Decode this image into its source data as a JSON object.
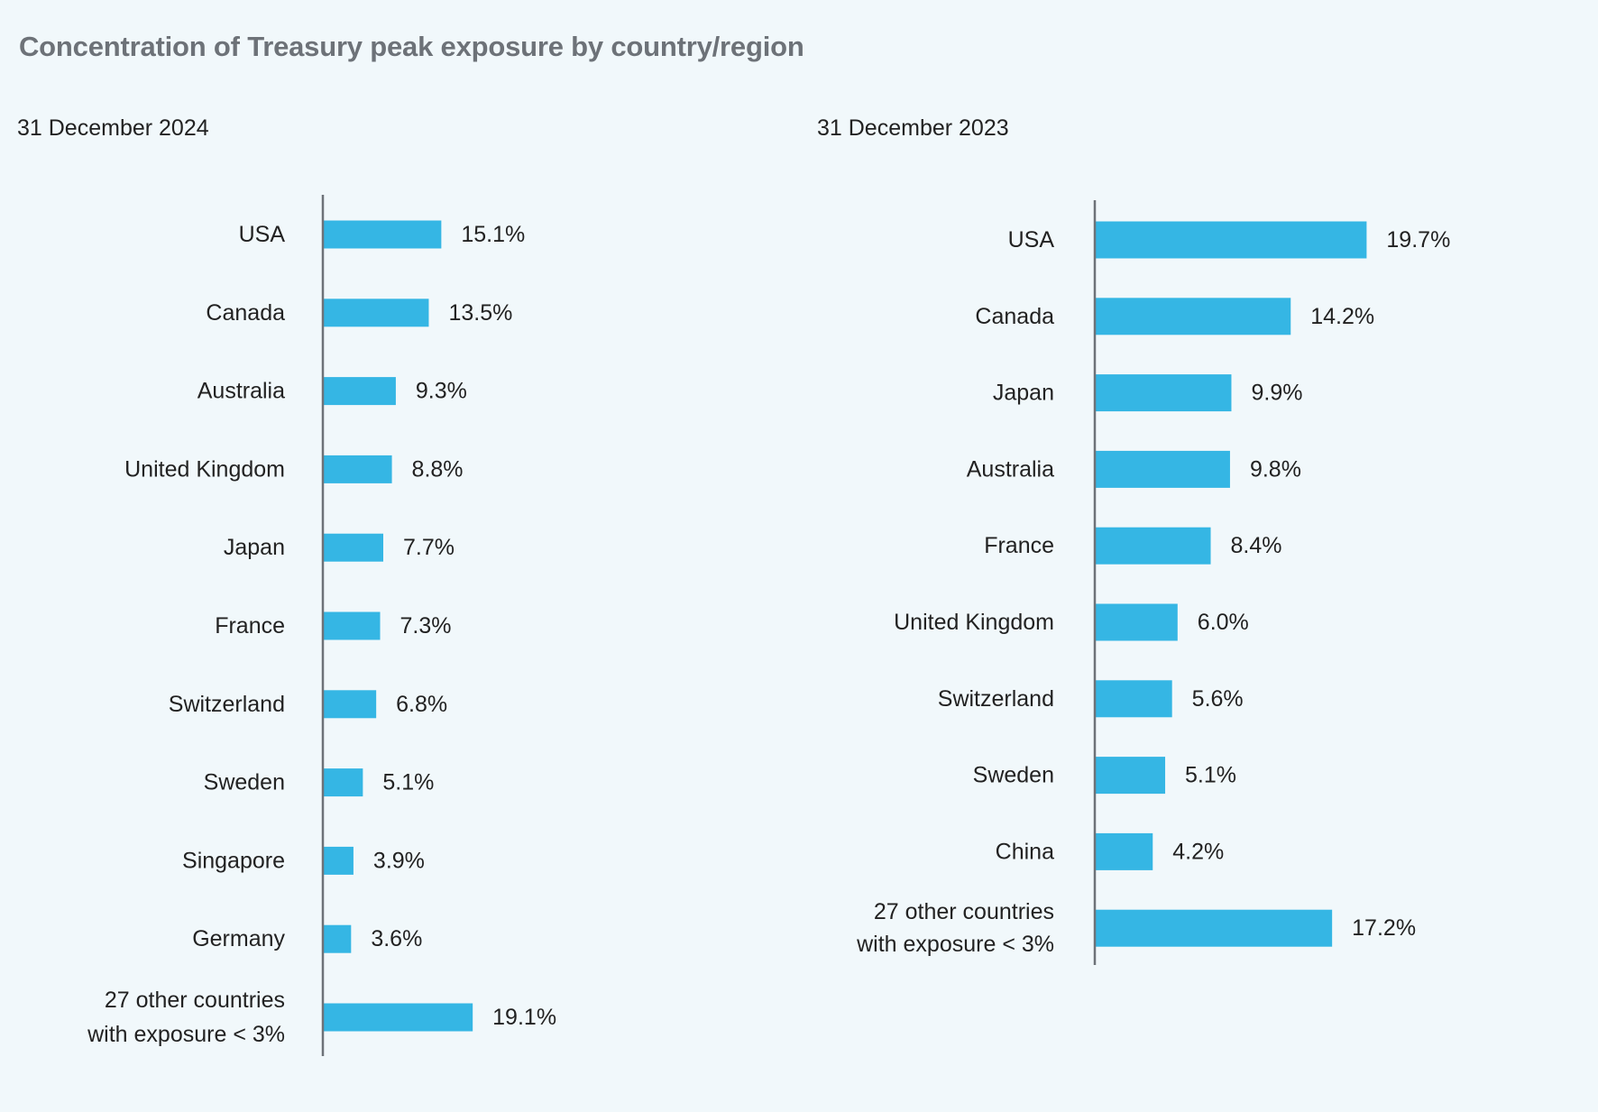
{
  "title": "Concentration of Treasury peak exposure by country/region",
  "colors": {
    "bar": "#35b6e4",
    "axis": "#6d7278",
    "title": "#6d7278",
    "background": "#f1f8fb"
  },
  "chart_data": [
    {
      "type": "bar",
      "orientation": "horizontal",
      "title": "31 December 2024",
      "xlabel": "",
      "ylabel": "",
      "unit": "%",
      "categories": [
        "USA",
        "Canada",
        "Australia",
        "United Kingdom",
        "Japan",
        "France",
        "Switzerland",
        "Sweden",
        "Singapore",
        "Germany",
        "27 other countries with exposure < 3%"
      ],
      "category_lines": [
        [
          "USA"
        ],
        [
          "Canada"
        ],
        [
          "Australia"
        ],
        [
          "United Kingdom"
        ],
        [
          "Japan"
        ],
        [
          "France"
        ],
        [
          "Switzerland"
        ],
        [
          "Sweden"
        ],
        [
          "Singapore"
        ],
        [
          "Germany"
        ],
        [
          "27 other countries",
          "with exposure < 3%"
        ]
      ],
      "values": [
        15.1,
        13.5,
        9.3,
        8.8,
        7.7,
        7.3,
        6.8,
        5.1,
        3.9,
        3.6,
        19.1
      ],
      "value_labels": [
        "15.1%",
        "13.5%",
        "9.3%",
        "8.8%",
        "7.7%",
        "7.3%",
        "6.8%",
        "5.1%",
        "3.9%",
        "3.6%",
        "19.1%"
      ],
      "grid": false,
      "legend": "none"
    },
    {
      "type": "bar",
      "orientation": "horizontal",
      "title": "31 December 2023",
      "xlabel": "",
      "ylabel": "",
      "unit": "%",
      "categories": [
        "USA",
        "Canada",
        "Japan",
        "Australia",
        "France",
        "United Kingdom",
        "Switzerland",
        "Sweden",
        "China",
        "27 other countries with exposure < 3%"
      ],
      "category_lines": [
        [
          "USA"
        ],
        [
          "Canada"
        ],
        [
          "Japan"
        ],
        [
          "Australia"
        ],
        [
          "France"
        ],
        [
          "United Kingdom"
        ],
        [
          "Switzerland"
        ],
        [
          "Sweden"
        ],
        [
          "China"
        ],
        [
          "27 other countries",
          "with exposure < 3%"
        ]
      ],
      "values": [
        19.7,
        14.2,
        9.9,
        9.8,
        8.4,
        6.0,
        5.6,
        5.1,
        4.2,
        17.2
      ],
      "value_labels": [
        "19.7%",
        "14.2%",
        "9.9%",
        "9.8%",
        "8.4%",
        "6.0%",
        "5.6%",
        "5.1%",
        "4.2%",
        "17.2%"
      ],
      "grid": false,
      "legend": "none"
    }
  ]
}
